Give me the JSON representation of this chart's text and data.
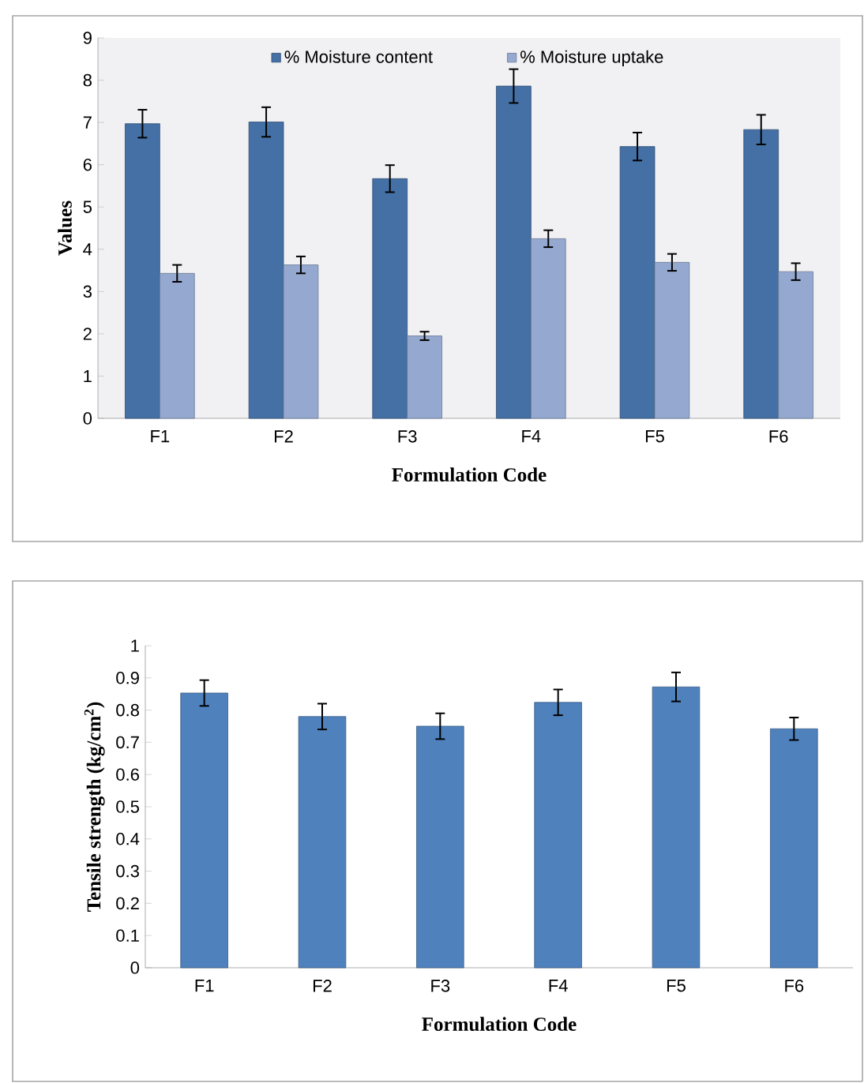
{
  "chart_data": [
    {
      "type": "bar",
      "categories": [
        "F1",
        "F2",
        "F3",
        "F4",
        "F5",
        "F6"
      ],
      "xlabel": "Formulation Code",
      "ylabel": "Values",
      "ylim": [
        0,
        9
      ],
      "yticks": [
        0,
        1,
        2,
        3,
        4,
        5,
        6,
        7,
        8,
        9
      ],
      "legend": "top",
      "series": [
        {
          "name": "% Moisture content",
          "color": "#4470a5",
          "values": [
            6.97,
            7.01,
            5.67,
            7.86,
            6.43,
            6.83
          ],
          "errors": [
            0.33,
            0.35,
            0.32,
            0.4,
            0.33,
            0.35
          ]
        },
        {
          "name": "% Moisture uptake",
          "color": "#95a9d0",
          "values": [
            3.43,
            3.63,
            1.95,
            4.25,
            3.69,
            3.47
          ],
          "errors": [
            0.2,
            0.2,
            0.1,
            0.2,
            0.2,
            0.2
          ]
        }
      ]
    },
    {
      "type": "bar",
      "categories": [
        "F1",
        "F2",
        "F3",
        "F4",
        "F5",
        "F6"
      ],
      "xlabel": "Formulation Code",
      "ylabel": "Tensile strength (kg/cm$^{2}$)",
      "ylim": [
        0,
        1
      ],
      "yticks": [
        0,
        0.1,
        0.2,
        0.3,
        0.4,
        0.5,
        0.6,
        0.7,
        0.8,
        0.9,
        1
      ],
      "color": "#4f81bd",
      "values": [
        0.853,
        0.78,
        0.75,
        0.824,
        0.872,
        0.742
      ],
      "errors": [
        0.04,
        0.04,
        0.04,
        0.04,
        0.045,
        0.035
      ]
    }
  ]
}
